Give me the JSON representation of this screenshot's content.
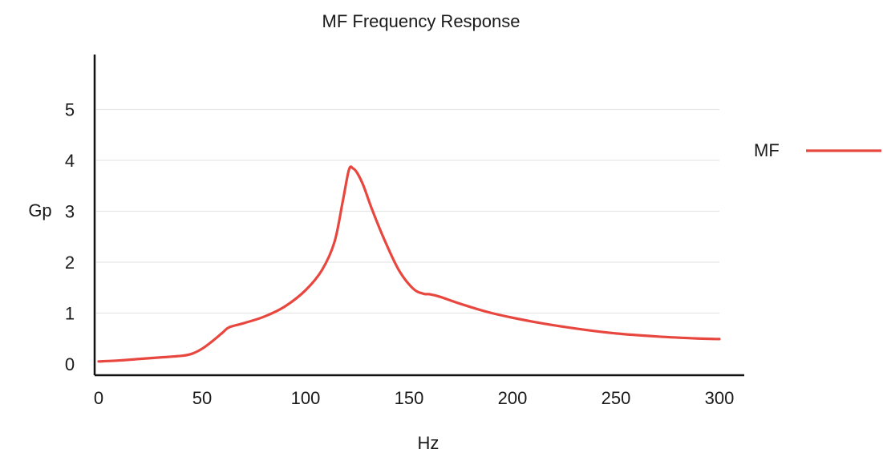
{
  "chart_data": {
    "type": "line",
    "title": "MF Frequency Response",
    "xlabel": "Hz",
    "ylabel": "Gp",
    "xlim": [
      0,
      300
    ],
    "ylim": [
      0,
      6
    ],
    "xticks": [
      0,
      50,
      100,
      150,
      200,
      250,
      300
    ],
    "yticks": [
      0,
      1,
      2,
      3,
      4,
      5
    ],
    "grid": true,
    "legend_position": "right",
    "colors": {
      "series": "#e8473f",
      "axis": "#111111",
      "grid": "#e6e6e6"
    },
    "series": [
      {
        "name": "MF",
        "x": [
          0,
          10,
          20,
          30,
          40,
          45,
          50,
          55,
          60,
          63,
          70,
          80,
          90,
          100,
          108,
          114,
          118,
          121,
          123,
          125,
          128,
          132,
          138,
          145,
          152,
          157,
          160,
          165,
          175,
          190,
          210,
          230,
          250,
          270,
          290,
          300
        ],
        "y": [
          0.05,
          0.07,
          0.1,
          0.13,
          0.16,
          0.2,
          0.3,
          0.45,
          0.62,
          0.72,
          0.8,
          0.93,
          1.13,
          1.45,
          1.85,
          2.4,
          3.2,
          3.82,
          3.84,
          3.75,
          3.5,
          3.05,
          2.45,
          1.85,
          1.48,
          1.38,
          1.37,
          1.32,
          1.18,
          1.0,
          0.83,
          0.7,
          0.6,
          0.54,
          0.5,
          0.49
        ]
      }
    ]
  }
}
